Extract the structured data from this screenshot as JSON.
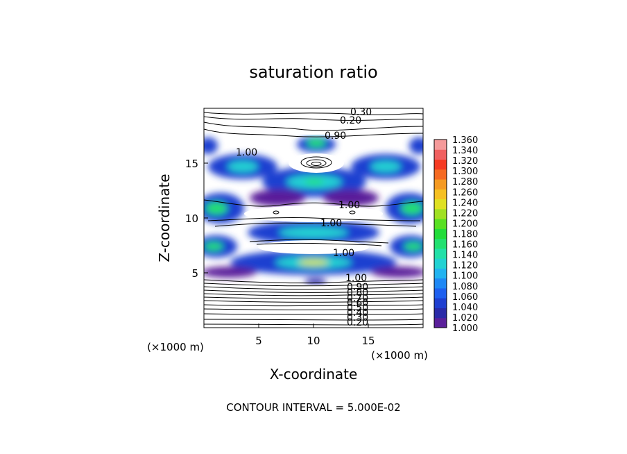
{
  "chart_data": {
    "type": "heatmap",
    "title": "saturation ratio",
    "xlabel": "X-coordinate",
    "ylabel": "Z-coordinate",
    "x_unit": "(×1000 m)",
    "z_unit": "(×1000 m)",
    "xlim": [
      0,
      20
    ],
    "ylim": [
      0,
      20
    ],
    "x_ticks": [
      5,
      10,
      15
    ],
    "y_ticks": [
      5,
      10,
      15
    ],
    "colorbar": {
      "min": 1.0,
      "max": 1.36,
      "ticks": [
        "1.000",
        "1.020",
        "1.040",
        "1.060",
        "1.080",
        "1.100",
        "1.120",
        "1.140",
        "1.160",
        "1.180",
        "1.200",
        "1.220",
        "1.240",
        "1.260",
        "1.280",
        "1.300",
        "1.320",
        "1.340",
        "1.360"
      ],
      "colors": [
        "#5a1f9a",
        "#2a2aa8",
        "#1f3fd0",
        "#1f60ef",
        "#1f88f5",
        "#22b3f0",
        "#22d2d2",
        "#22e0a8",
        "#22e070",
        "#22dc3a",
        "#58e022",
        "#a0e022",
        "#dfe022",
        "#f5c022",
        "#f59a22",
        "#f56a22",
        "#f53a22",
        "#f06060",
        "#f59a9a"
      ]
    },
    "contour_labels": [
      "0.30",
      "0.20",
      "0.90",
      "1.00",
      "1.00",
      "1.00",
      "1.00",
      "1.00",
      "0.90",
      "0.80",
      "0.70",
      "0.60",
      "0.50",
      "0.40",
      "0.30",
      "0.20"
    ],
    "contour_interval_text": "CONTOUR INTERVAL = 5.000E-02"
  }
}
